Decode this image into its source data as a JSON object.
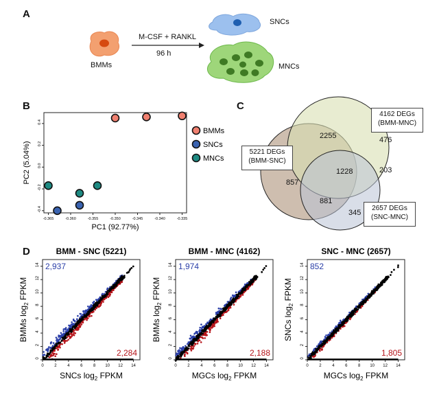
{
  "panel_labels": {
    "a": "A",
    "b": "B",
    "c": "C",
    "d": "D"
  },
  "panel_a": {
    "bmm_label": "BMMs",
    "treatment": "M-CSF + RANKL",
    "duration": "96 h",
    "snc_label": "SNCs",
    "mnc_label": "MNCs"
  },
  "panel_b": {
    "chart_data": {
      "type": "scatter",
      "xlabel": "PC1 (92.77%)",
      "ylabel": "PC2 (5.04%)",
      "xlim": [
        -0.366,
        -0.334
      ],
      "ylim": [
        -0.42,
        0.5
      ],
      "xticks": [
        "-0.365",
        "-0.360",
        "-0.355",
        "-0.350",
        "-0.345",
        "-0.340",
        "-0.335"
      ],
      "xtick_values": [
        -0.365,
        -0.36,
        -0.355,
        -0.35,
        -0.345,
        -0.34,
        -0.335
      ],
      "yticks": [
        "-0.4",
        "-0.2",
        "0.0",
        "0.2",
        "0.4"
      ],
      "ytick_values": [
        -0.4,
        -0.2,
        0.0,
        0.2,
        0.4
      ],
      "series": [
        {
          "name": "BMMs",
          "color": "#f08070",
          "points": [
            [
              -0.35,
              0.45
            ],
            [
              -0.343,
              0.46
            ],
            [
              -0.335,
              0.47
            ]
          ]
        },
        {
          "name": "SNCs",
          "color": "#3a63b0",
          "points": [
            [
              -0.363,
              -0.4
            ],
            [
              -0.358,
              -0.35
            ]
          ]
        },
        {
          "name": "MNCs",
          "color": "#1e8a82",
          "points": [
            [
              -0.365,
              -0.17
            ],
            [
              -0.358,
              -0.24
            ],
            [
              -0.354,
              -0.17
            ]
          ]
        }
      ]
    }
  },
  "panel_c": {
    "chart_data": {
      "type": "venn",
      "sets": [
        {
          "label": "5221 DEGs\n(BMM-SNC)",
          "line1": "5221 DEGs",
          "line2": "(BMM-SNC)",
          "total": 5221
        },
        {
          "label": "4162 DEGs\n(BMM-MNC)",
          "line1": "4162 DEGs",
          "line2": "(BMM-MNC)",
          "total": 4162
        },
        {
          "label": "2657 DEGs\n(SNC-MNC)",
          "line1": "2657 DEGs",
          "line2": "(SNC-MNC)",
          "total": 2657
        }
      ],
      "regions": {
        "bmm_snc_and_bmm_mnc": "2255",
        "bmm_mnc_only": "476",
        "bmm_snc_only": "857",
        "all_three": "1228",
        "bmm_mnc_and_snc_mnc": "203",
        "bmm_snc_and_snc_mnc": "881",
        "snc_mnc_only": "345"
      }
    }
  },
  "panel_d": {
    "plots": [
      {
        "title": "BMM - SNC (5221)",
        "xlabel_name": "SNCs",
        "ylabel_name": "BMMs",
        "up_count": "2,937",
        "down_count": "2,284",
        "spread": 1.0
      },
      {
        "title": "BMM - MNC (4162)",
        "xlabel_name": "MGCs",
        "ylabel_name": "BMMs",
        "up_count": "1,974",
        "down_count": "2,188",
        "spread": 0.9
      },
      {
        "title": "SNC - MNC (2657)",
        "xlabel_name": "MGCs",
        "ylabel_name": "SNCs",
        "up_count": "852",
        "down_count": "1,805",
        "spread": 0.55
      }
    ],
    "axis_unit": "log",
    "axis_unit_sub": "2",
    "axis_unit_tail": "FPKM",
    "xticks": [
      "0",
      "2",
      "4",
      "6",
      "8",
      "10",
      "12",
      "14"
    ],
    "yticks": [
      "0",
      "2",
      "4",
      "6",
      "8",
      "10",
      "12",
      "14"
    ],
    "colors": {
      "up": "#2b3fa8",
      "down": "#b5141a",
      "ns": "#000000"
    }
  }
}
